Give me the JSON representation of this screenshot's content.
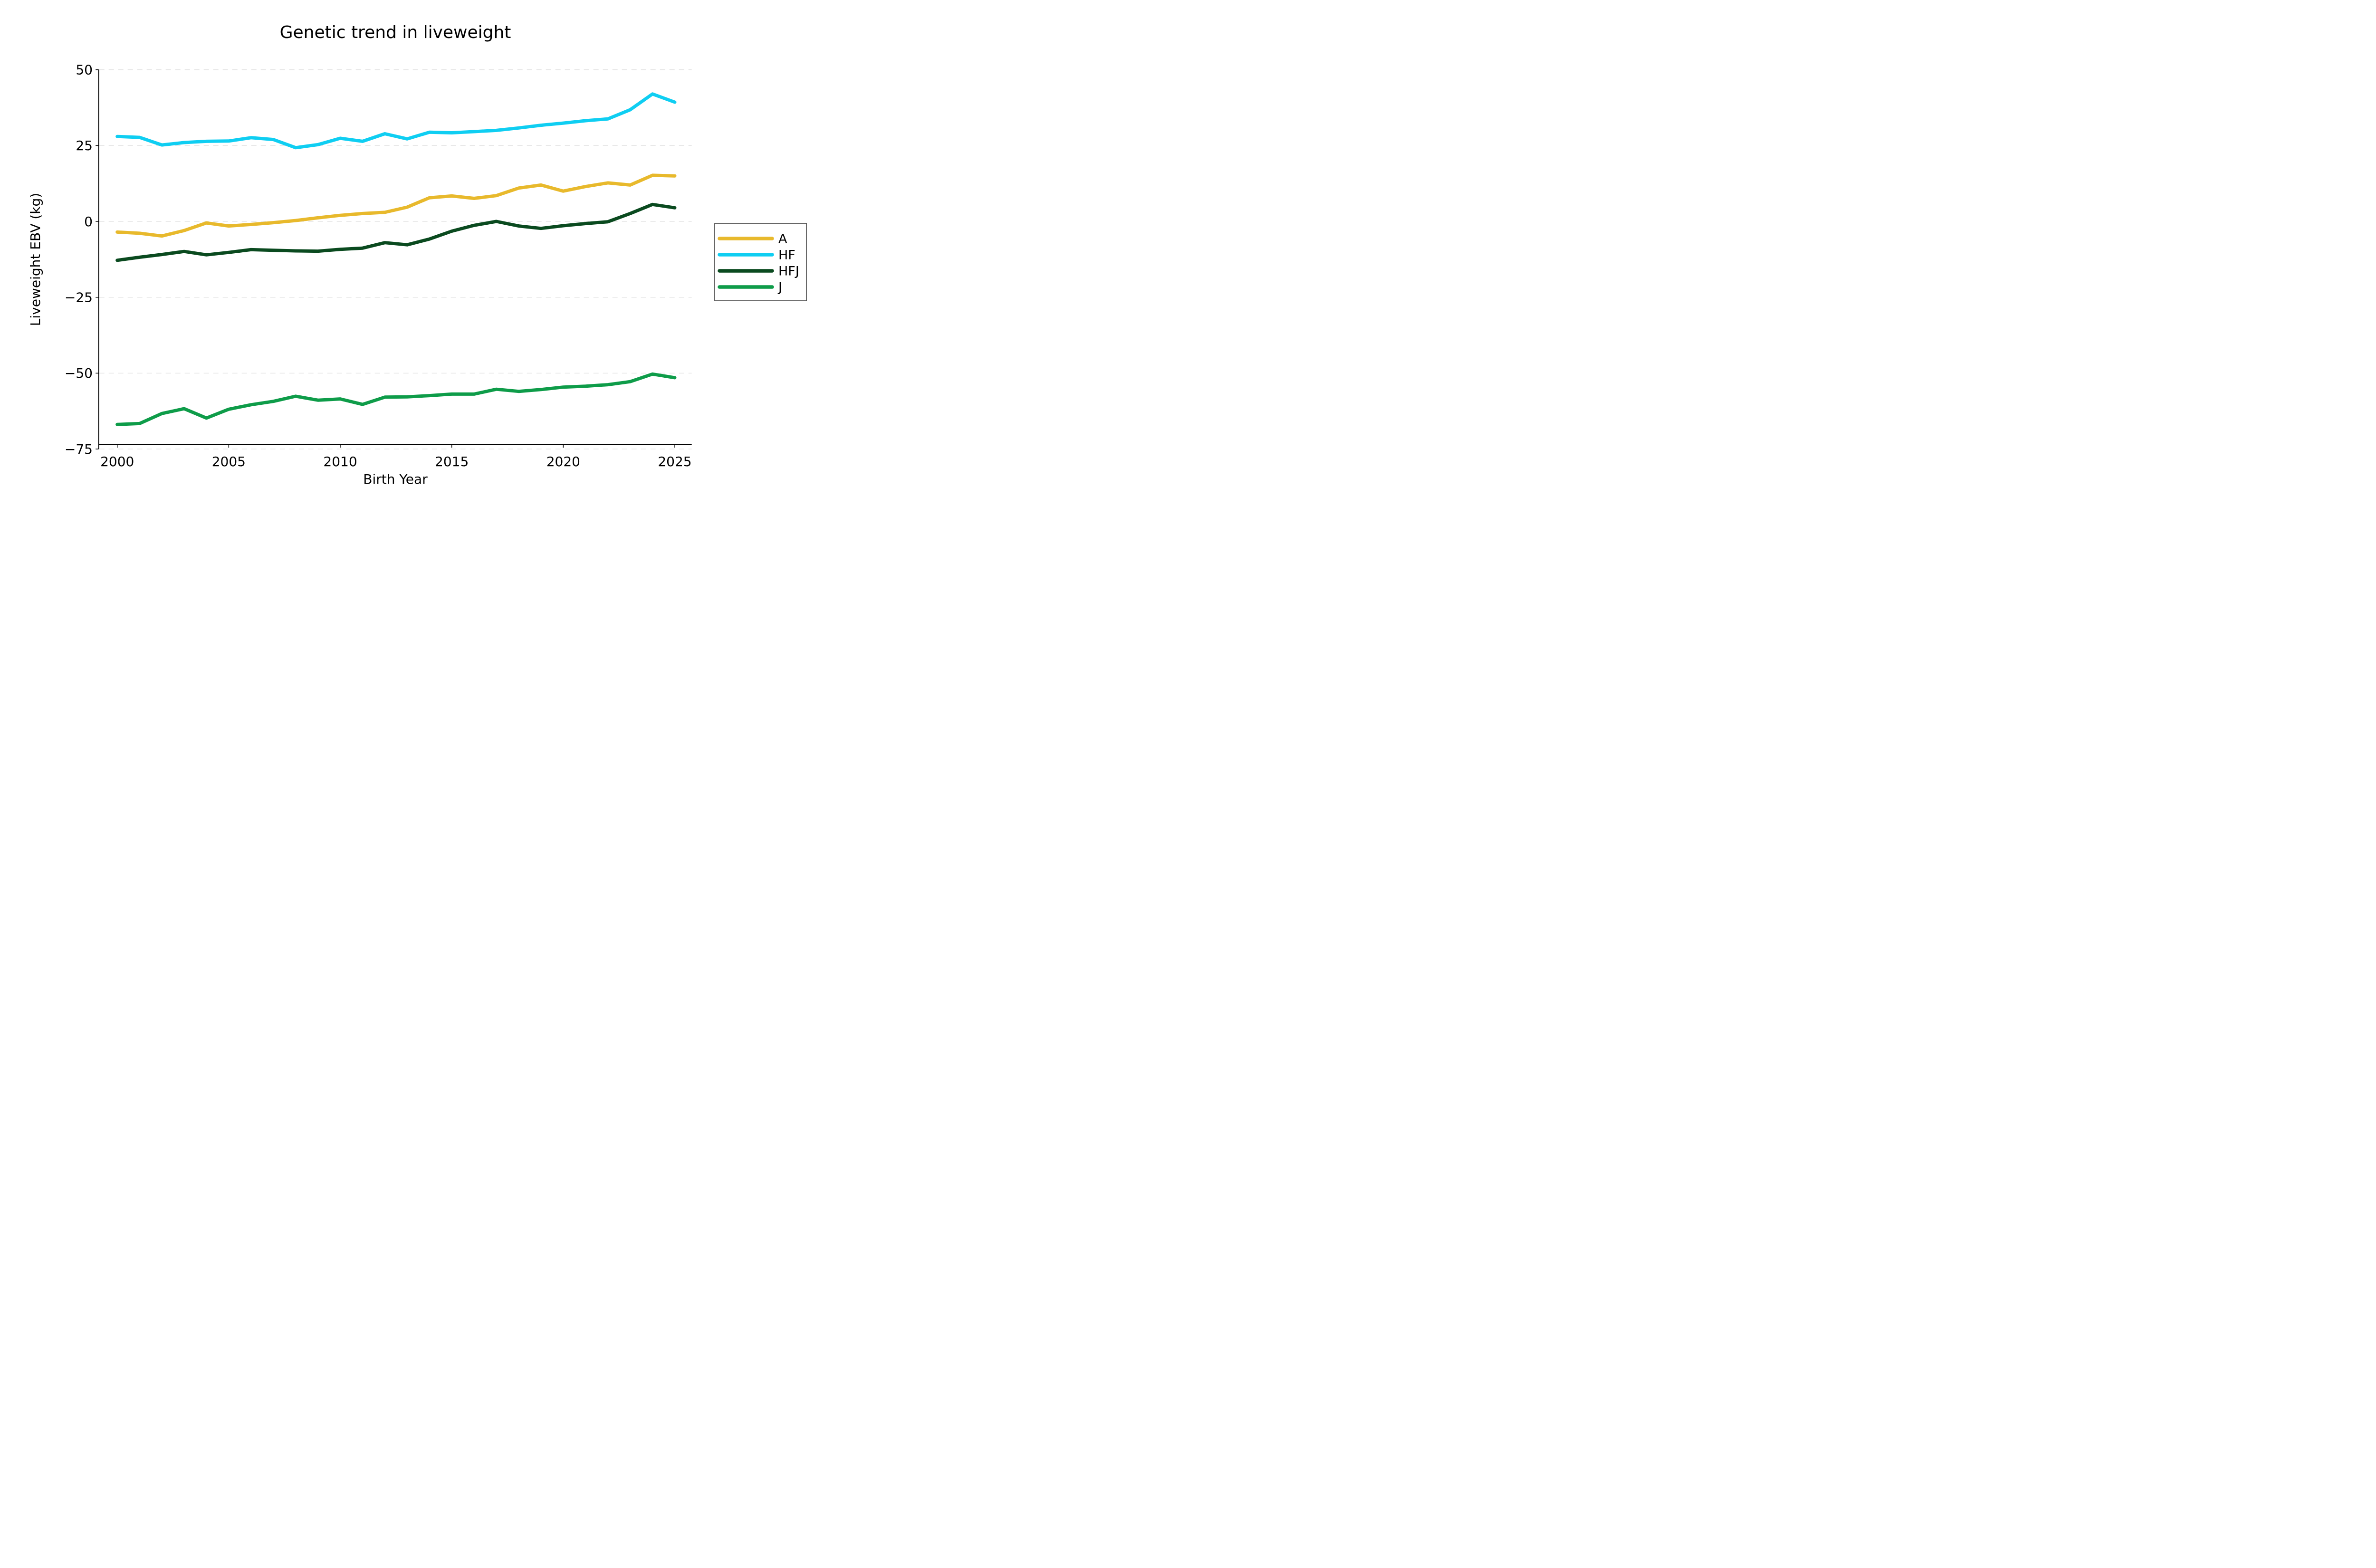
{
  "figure": {
    "background": "#ffffff",
    "text_color": "#000000",
    "grid_color": "#dedede"
  },
  "chart_data": {
    "type": "line",
    "title": "Genetic trend in liveweight",
    "xlabel": "Birth Year",
    "ylabel": "Liveweight EBV (kg)",
    "xlim": [
      2000,
      2025
    ],
    "ylim": [
      -75,
      50
    ],
    "grid": "horizontal dashed gridlines at each y tick",
    "legend_position": "outside right, vertically centered",
    "x_ticks": [
      2000,
      2005,
      2010,
      2015,
      2020,
      2025
    ],
    "x_tick_labels": [
      "2000",
      "2005",
      "2010",
      "2015",
      "2020",
      "2025"
    ],
    "y_ticks": [
      50,
      25,
      0,
      -25,
      -50,
      -75
    ],
    "y_tick_labels": [
      "50",
      "25",
      "0",
      "−25",
      "−50",
      "−75"
    ],
    "x": [
      2000,
      2001,
      2002,
      2003,
      2004,
      2005,
      2006,
      2007,
      2008,
      2009,
      2010,
      2011,
      2012,
      2013,
      2014,
      2015,
      2016,
      2017,
      2018,
      2019,
      2020,
      2021,
      2022,
      2023,
      2024,
      2025
    ],
    "series": [
      {
        "name": "A",
        "color": "#E8B92C",
        "values": [
          -3.5,
          -3.9,
          -4.8,
          -3.0,
          -0.5,
          -1.5,
          -1.0,
          -0.4,
          0.3,
          1.2,
          2.0,
          2.6,
          3.0,
          4.7,
          7.8,
          8.4,
          7.6,
          8.5,
          11.0,
          12.0,
          10.0,
          11.5,
          12.7,
          12.0,
          15.2,
          15.0
        ]
      },
      {
        "name": "HF",
        "color": "#0FCEF2",
        "values": [
          28.0,
          27.7,
          25.2,
          26.0,
          26.4,
          26.5,
          27.6,
          27.0,
          24.3,
          25.3,
          27.4,
          26.4,
          28.9,
          27.2,
          29.4,
          29.2,
          29.6,
          30.0,
          30.8,
          31.7,
          32.4,
          33.2,
          33.8,
          36.8,
          42.0,
          39.3
        ]
      },
      {
        "name": "HFJ",
        "color": "#0A4A1F",
        "values": [
          -12.8,
          -11.8,
          -10.9,
          -9.9,
          -11.0,
          -10.2,
          -9.3,
          -9.5,
          -9.7,
          -9.8,
          -9.2,
          -8.8,
          -7.0,
          -7.7,
          -5.8,
          -3.2,
          -1.3,
          0.0,
          -1.5,
          -2.3,
          -1.4,
          -0.7,
          -0.1,
          2.6,
          5.6,
          4.5
        ]
      },
      {
        "name": "J",
        "color": "#0E9C49",
        "values": [
          -66.9,
          -66.6,
          -63.3,
          -61.7,
          -64.8,
          -61.9,
          -60.4,
          -59.3,
          -57.6,
          -58.9,
          -58.5,
          -60.3,
          -57.9,
          -57.8,
          -57.4,
          -56.9,
          -56.9,
          -55.3,
          -56.0,
          -55.4,
          -54.6,
          -54.3,
          -53.8,
          -52.8,
          -50.3,
          -51.5
        ]
      }
    ]
  }
}
